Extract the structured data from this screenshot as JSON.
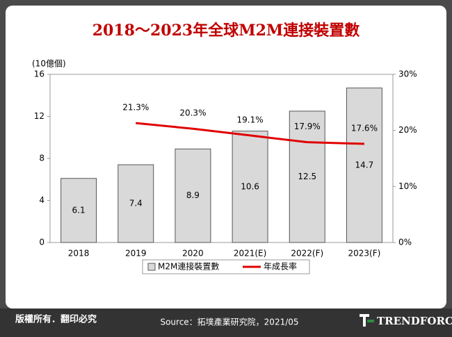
{
  "chart_data": {
    "type": "bar",
    "title": "2018～2023年全球M2M連接裝置數",
    "y_label": "(10億個)",
    "categories": [
      "2018",
      "2019",
      "2020",
      "2021(E)",
      "2022(F)",
      "2023(F)"
    ],
    "series": [
      {
        "name": "M2M連接裝置數",
        "type": "bar",
        "color": "#d9d9d9",
        "values": [
          6.1,
          7.4,
          8.9,
          10.6,
          12.5,
          14.7
        ]
      },
      {
        "name": "年成長率",
        "type": "line",
        "axis": "y2",
        "color": "#e00000",
        "values": [
          null,
          21.3,
          20.3,
          19.1,
          17.9,
          17.6
        ],
        "value_labels": [
          null,
          "21.3%",
          "20.3%",
          "19.1%",
          "17.9%",
          "17.6%"
        ]
      }
    ],
    "ylim": [
      0,
      16
    ],
    "yticks": [
      0,
      4,
      8,
      12,
      16
    ],
    "y2lim": [
      0,
      30
    ],
    "y2ticks": [
      {
        "value": 0,
        "label": "0%"
      },
      {
        "value": 10,
        "label": "10%"
      },
      {
        "value": 20,
        "label": "20%"
      },
      {
        "value": 30,
        "label": "30%"
      }
    ],
    "legend": "bottom"
  },
  "footer": {
    "copyright": "版權所有．翻印必究",
    "source": "Source：拓墣產業研究院，2021/05",
    "brand": "TRENDFORCE"
  }
}
